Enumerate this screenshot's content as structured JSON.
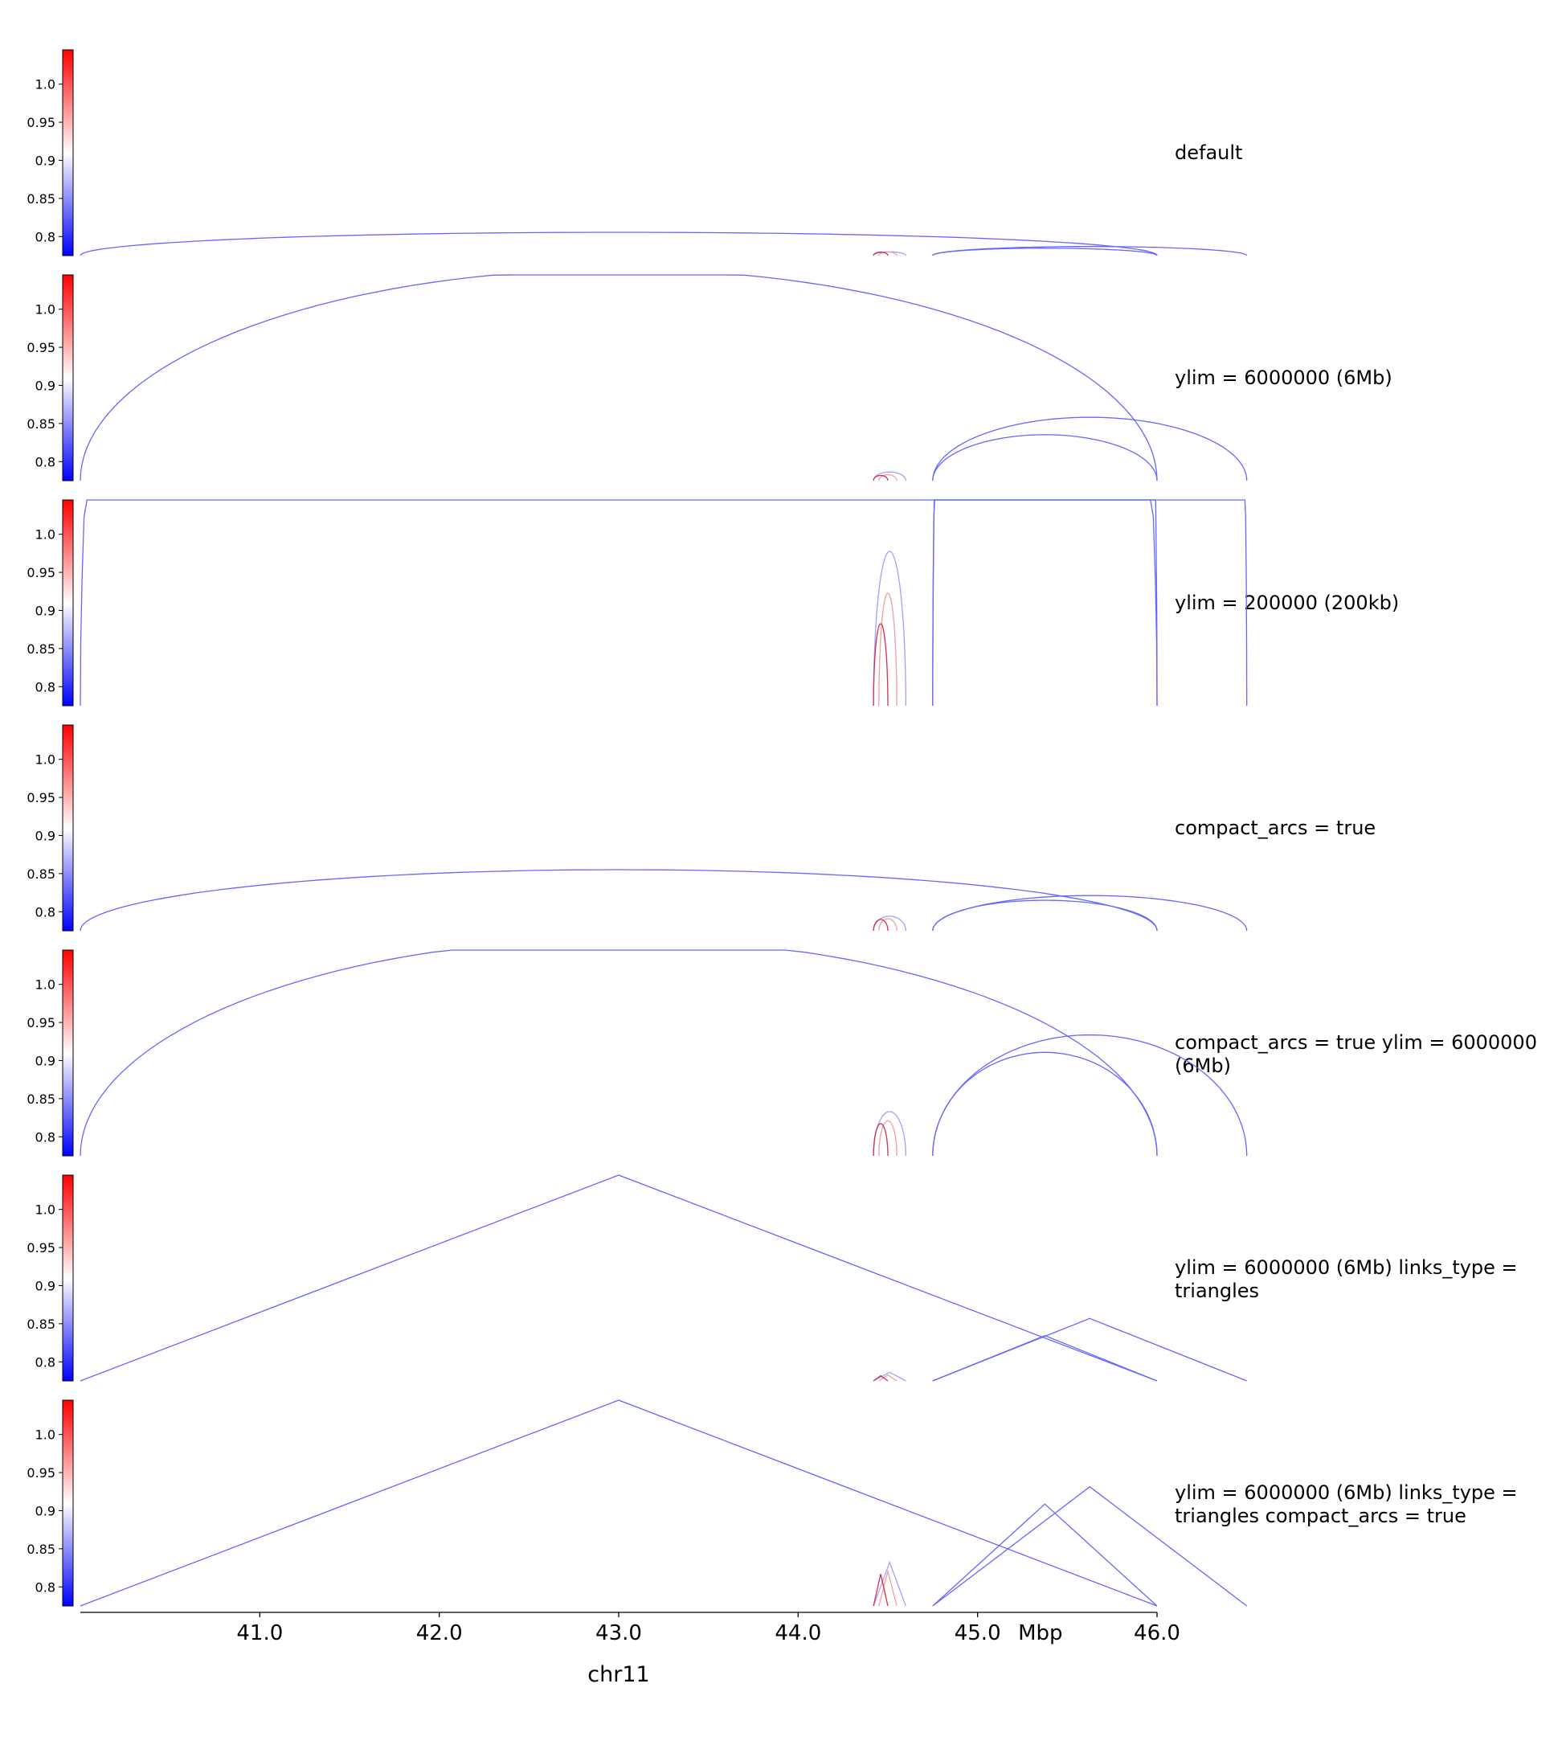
{
  "chart_data": {
    "type": "line",
    "description_free": true,
    "colormap": {
      "low": "#0000ff",
      "mid": "#ffffff",
      "high": "#ff0000",
      "vmin": 0.775,
      "vmax": 1.045
    },
    "colorbar_ticks": [
      "1.0",
      "0.95",
      "0.9",
      "0.85",
      "0.8"
    ],
    "colorbar_tick_values": [
      1.0,
      0.95,
      0.9,
      0.85,
      0.8
    ],
    "x_axis": {
      "label": "chr11",
      "unit_label": "Mbp",
      "range": [
        40.0,
        46.0
      ],
      "ticks": [
        "41.0",
        "42.0",
        "43.0",
        "44.0",
        "45.0",
        "46.0"
      ],
      "tick_values": [
        41.0,
        42.0,
        43.0,
        44.0,
        45.0,
        46.0
      ]
    },
    "links": [
      {
        "start": 40.0,
        "end": 46.0,
        "score": 0.78,
        "color": "#6666ff"
      },
      {
        "start": 44.42,
        "end": 44.6,
        "score": 0.8,
        "color": "#a0a0ff"
      },
      {
        "start": 44.45,
        "end": 44.55,
        "score": 0.9,
        "color": "#f0a0a0"
      },
      {
        "start": 44.42,
        "end": 44.5,
        "score": 0.95,
        "color": "#d03050"
      },
      {
        "start": 44.75,
        "end": 46.0,
        "score": 0.78,
        "color": "#6666ff"
      },
      {
        "start": 44.75,
        "end": 46.5,
        "score": 0.78,
        "color": "#6666ff"
      }
    ],
    "tracks": [
      {
        "title": "default",
        "mode": "arcs-default"
      },
      {
        "title": "ylim = 6000000 (6Mb)",
        "mode": "arcs-ylim-6mb"
      },
      {
        "title": "ylim = 200000 (200kb)",
        "mode": "arcs-ylim-200kb"
      },
      {
        "title": "compact_arcs = true",
        "mode": "arcs-compact"
      },
      {
        "title": "compact_arcs = true ylim = 6000000 (6Mb)",
        "mode": "arcs-compact-6mb"
      },
      {
        "title": "ylim = 6000000 (6Mb) links_type = triangles",
        "mode": "triangles-6mb"
      },
      {
        "title": "ylim = 6000000 (6Mb) links_type = triangles compact_arcs = true",
        "mode": "triangles-compact-6mb"
      }
    ]
  }
}
